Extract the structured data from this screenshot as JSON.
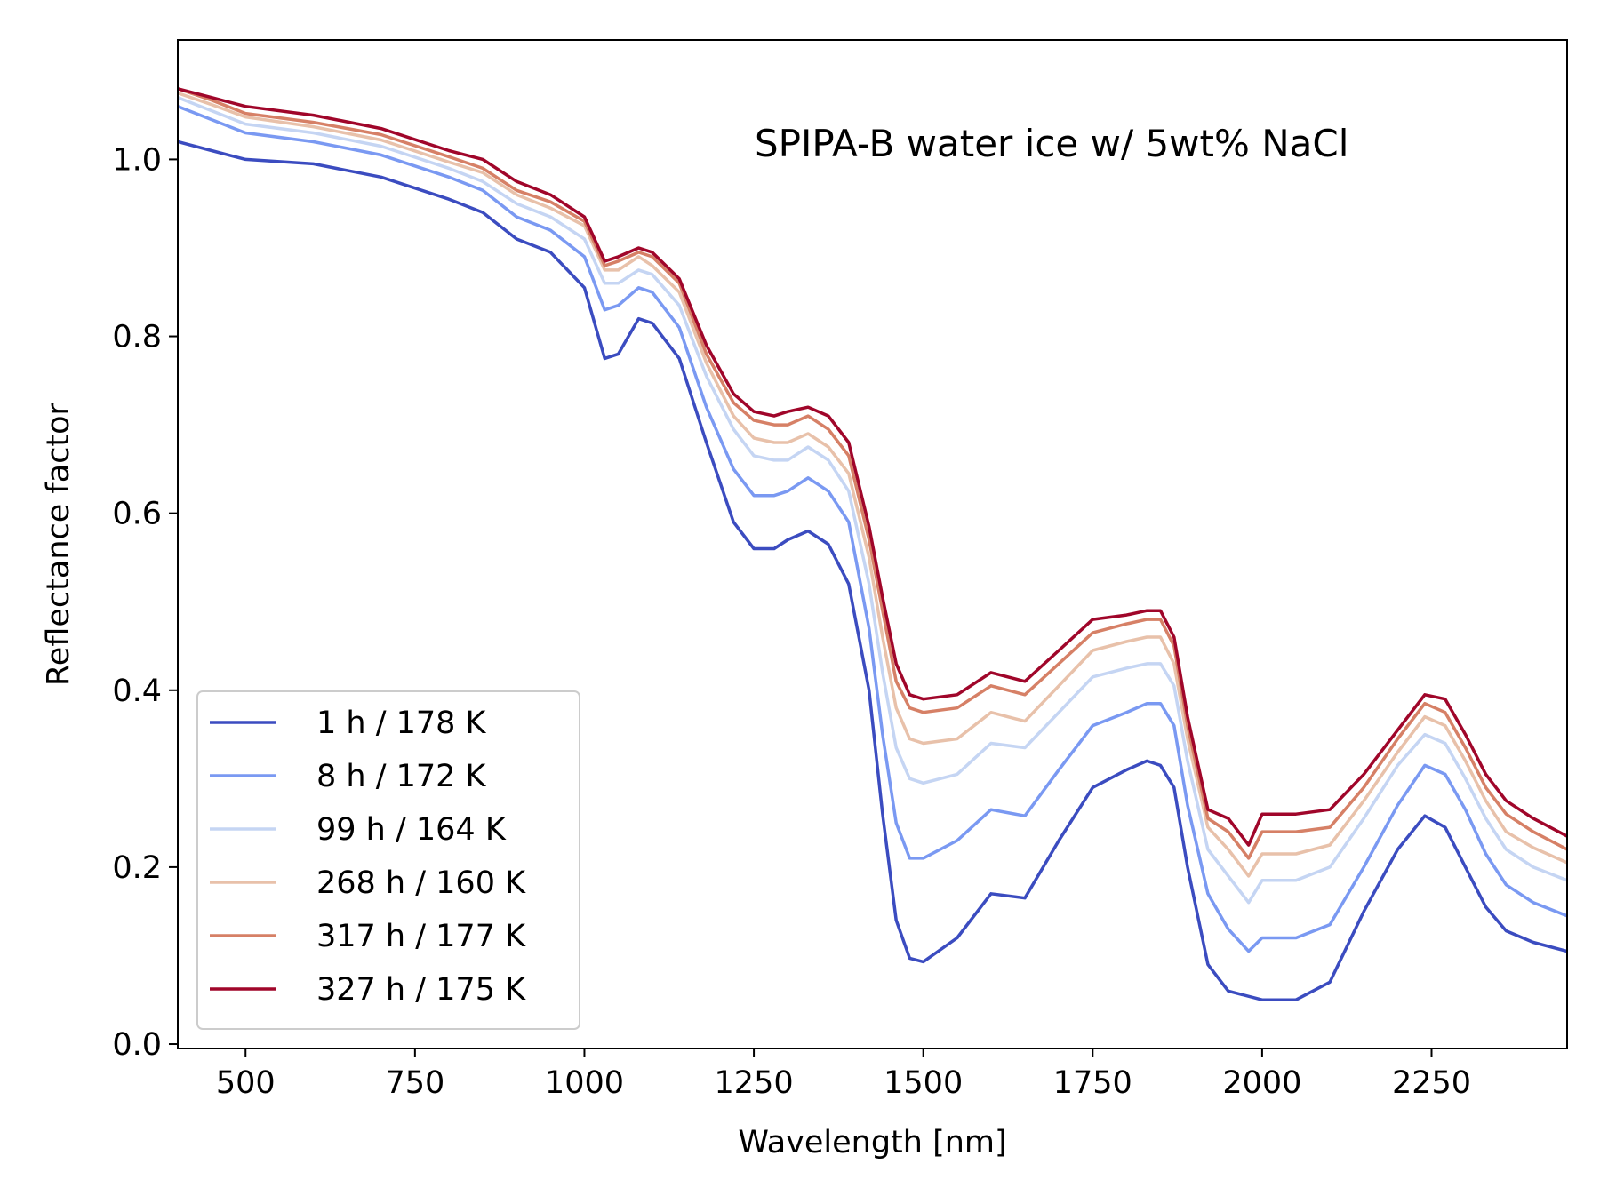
{
  "chart_data": {
    "type": "line",
    "title": "",
    "annotation": "SPIPA-B water ice w/ 5wt% NaCl",
    "xlabel": "Wavelength [nm]",
    "ylabel": "Reflectance factor",
    "xlim": [
      400,
      2450
    ],
    "ylim": [
      -0.005,
      1.135
    ],
    "xticks": [
      500,
      750,
      1000,
      1250,
      1500,
      1750,
      2000,
      2250
    ],
    "xtick_labels": [
      "500",
      "750",
      "1000",
      "1250",
      "1500",
      "1750",
      "2000",
      "2250"
    ],
    "yticks": [
      0.0,
      0.2,
      0.4,
      0.6,
      0.8,
      1.0
    ],
    "ytick_labels": [
      "0.0",
      "0.2",
      "0.4",
      "0.6",
      "0.8",
      "1.0"
    ],
    "grid": false,
    "legend_position": "lower-left",
    "series": [
      {
        "name": "1 h / 178 K",
        "color": "#3b4cc0",
        "x": [
          400,
          450,
          500,
          600,
          700,
          800,
          850,
          900,
          950,
          1000,
          1030,
          1050,
          1080,
          1100,
          1140,
          1180,
          1220,
          1250,
          1280,
          1300,
          1330,
          1360,
          1390,
          1420,
          1440,
          1460,
          1480,
          1500,
          1550,
          1600,
          1650,
          1700,
          1750,
          1800,
          1830,
          1850,
          1870,
          1890,
          1920,
          1950,
          2000,
          2050,
          2100,
          2150,
          2200,
          2240,
          2270,
          2300,
          2330,
          2360,
          2400,
          2450
        ],
        "y": [
          1.02,
          1.01,
          1.0,
          0.995,
          0.98,
          0.955,
          0.94,
          0.91,
          0.895,
          0.855,
          0.775,
          0.78,
          0.82,
          0.815,
          0.775,
          0.68,
          0.59,
          0.56,
          0.56,
          0.57,
          0.58,
          0.565,
          0.52,
          0.4,
          0.26,
          0.14,
          0.097,
          0.093,
          0.12,
          0.17,
          0.165,
          0.23,
          0.29,
          0.31,
          0.32,
          0.315,
          0.29,
          0.2,
          0.09,
          0.06,
          0.05,
          0.05,
          0.07,
          0.15,
          0.22,
          0.258,
          0.245,
          0.2,
          0.155,
          0.128,
          0.115,
          0.105
        ]
      },
      {
        "name": "8 h / 172 K",
        "color": "#7a99f2",
        "x": [
          400,
          450,
          500,
          600,
          700,
          800,
          850,
          900,
          950,
          1000,
          1030,
          1050,
          1080,
          1100,
          1140,
          1180,
          1220,
          1250,
          1280,
          1300,
          1330,
          1360,
          1390,
          1420,
          1440,
          1460,
          1480,
          1500,
          1550,
          1600,
          1650,
          1700,
          1750,
          1800,
          1830,
          1850,
          1870,
          1890,
          1920,
          1950,
          1980,
          2000,
          2050,
          2100,
          2150,
          2200,
          2240,
          2270,
          2300,
          2330,
          2360,
          2400,
          2450
        ],
        "y": [
          1.06,
          1.045,
          1.03,
          1.02,
          1.005,
          0.98,
          0.965,
          0.935,
          0.92,
          0.89,
          0.83,
          0.835,
          0.855,
          0.85,
          0.81,
          0.72,
          0.65,
          0.62,
          0.62,
          0.625,
          0.64,
          0.625,
          0.59,
          0.47,
          0.35,
          0.25,
          0.21,
          0.21,
          0.23,
          0.265,
          0.258,
          0.31,
          0.36,
          0.375,
          0.385,
          0.385,
          0.36,
          0.27,
          0.17,
          0.13,
          0.105,
          0.12,
          0.12,
          0.135,
          0.2,
          0.27,
          0.315,
          0.305,
          0.265,
          0.215,
          0.18,
          0.16,
          0.145
        ]
      },
      {
        "name": "99 h / 164 K",
        "color": "#c5d5f3",
        "x": [
          400,
          450,
          500,
          600,
          700,
          800,
          850,
          900,
          950,
          1000,
          1030,
          1050,
          1080,
          1100,
          1140,
          1180,
          1220,
          1250,
          1280,
          1300,
          1330,
          1360,
          1390,
          1420,
          1440,
          1460,
          1480,
          1500,
          1550,
          1600,
          1650,
          1700,
          1750,
          1800,
          1830,
          1850,
          1870,
          1890,
          1920,
          1950,
          1980,
          2000,
          2050,
          2100,
          2150,
          2200,
          2240,
          2270,
          2300,
          2330,
          2360,
          2400,
          2450
        ],
        "y": [
          1.07,
          1.055,
          1.04,
          1.03,
          1.015,
          0.99,
          0.975,
          0.95,
          0.935,
          0.91,
          0.86,
          0.86,
          0.875,
          0.87,
          0.835,
          0.755,
          0.695,
          0.665,
          0.66,
          0.66,
          0.675,
          0.66,
          0.625,
          0.52,
          0.42,
          0.335,
          0.3,
          0.295,
          0.305,
          0.34,
          0.335,
          0.375,
          0.415,
          0.425,
          0.43,
          0.43,
          0.405,
          0.32,
          0.22,
          0.19,
          0.16,
          0.185,
          0.185,
          0.2,
          0.255,
          0.315,
          0.35,
          0.34,
          0.3,
          0.255,
          0.22,
          0.2,
          0.185
        ]
      },
      {
        "name": "268 h / 160 K",
        "color": "#e8c1aa",
        "x": [
          400,
          450,
          500,
          600,
          700,
          800,
          850,
          900,
          950,
          1000,
          1030,
          1050,
          1080,
          1100,
          1140,
          1180,
          1220,
          1250,
          1280,
          1300,
          1330,
          1360,
          1390,
          1420,
          1440,
          1460,
          1480,
          1500,
          1550,
          1600,
          1650,
          1700,
          1750,
          1800,
          1830,
          1850,
          1870,
          1890,
          1920,
          1950,
          1980,
          2000,
          2050,
          2100,
          2150,
          2200,
          2240,
          2270,
          2300,
          2330,
          2360,
          2400,
          2450
        ],
        "y": [
          1.075,
          1.062,
          1.048,
          1.037,
          1.022,
          0.997,
          0.985,
          0.96,
          0.945,
          0.925,
          0.875,
          0.875,
          0.89,
          0.88,
          0.85,
          0.77,
          0.71,
          0.685,
          0.68,
          0.68,
          0.69,
          0.675,
          0.645,
          0.55,
          0.46,
          0.38,
          0.345,
          0.34,
          0.345,
          0.375,
          0.365,
          0.405,
          0.445,
          0.455,
          0.46,
          0.46,
          0.43,
          0.345,
          0.245,
          0.22,
          0.19,
          0.215,
          0.215,
          0.225,
          0.275,
          0.33,
          0.37,
          0.36,
          0.32,
          0.275,
          0.24,
          0.222,
          0.205
        ]
      },
      {
        "name": "317 h / 177 K",
        "color": "#d68066",
        "x": [
          400,
          450,
          500,
          600,
          700,
          800,
          850,
          900,
          950,
          1000,
          1030,
          1050,
          1080,
          1100,
          1140,
          1180,
          1220,
          1250,
          1280,
          1300,
          1330,
          1360,
          1390,
          1420,
          1440,
          1460,
          1480,
          1500,
          1550,
          1600,
          1650,
          1700,
          1750,
          1800,
          1830,
          1850,
          1870,
          1890,
          1920,
          1950,
          1980,
          2000,
          2050,
          2100,
          2150,
          2200,
          2240,
          2270,
          2300,
          2330,
          2360,
          2400,
          2450
        ],
        "y": [
          1.08,
          1.067,
          1.052,
          1.042,
          1.028,
          1.003,
          0.99,
          0.965,
          0.952,
          0.93,
          0.88,
          0.885,
          0.895,
          0.89,
          0.86,
          0.78,
          0.725,
          0.705,
          0.7,
          0.7,
          0.71,
          0.695,
          0.665,
          0.57,
          0.49,
          0.41,
          0.38,
          0.375,
          0.38,
          0.405,
          0.395,
          0.43,
          0.465,
          0.475,
          0.48,
          0.48,
          0.45,
          0.36,
          0.255,
          0.24,
          0.21,
          0.24,
          0.24,
          0.245,
          0.29,
          0.345,
          0.385,
          0.375,
          0.335,
          0.29,
          0.26,
          0.24,
          0.22
        ]
      },
      {
        "name": "327 h / 175 K",
        "color": "#a0062a",
        "x": [
          400,
          450,
          500,
          600,
          700,
          800,
          850,
          900,
          950,
          1000,
          1030,
          1050,
          1080,
          1100,
          1140,
          1180,
          1220,
          1250,
          1280,
          1300,
          1330,
          1360,
          1390,
          1420,
          1440,
          1460,
          1480,
          1500,
          1550,
          1600,
          1650,
          1700,
          1750,
          1800,
          1830,
          1850,
          1870,
          1890,
          1920,
          1950,
          1980,
          2000,
          2050,
          2100,
          2150,
          2200,
          2240,
          2270,
          2300,
          2330,
          2360,
          2400,
          2450
        ],
        "y": [
          1.08,
          1.07,
          1.06,
          1.05,
          1.035,
          1.01,
          1.0,
          0.975,
          0.96,
          0.935,
          0.885,
          0.89,
          0.9,
          0.895,
          0.865,
          0.79,
          0.735,
          0.715,
          0.71,
          0.715,
          0.72,
          0.71,
          0.68,
          0.585,
          0.505,
          0.43,
          0.395,
          0.39,
          0.395,
          0.42,
          0.41,
          0.445,
          0.48,
          0.485,
          0.49,
          0.49,
          0.46,
          0.37,
          0.265,
          0.255,
          0.225,
          0.26,
          0.26,
          0.265,
          0.305,
          0.355,
          0.395,
          0.39,
          0.35,
          0.305,
          0.275,
          0.255,
          0.235
        ]
      }
    ]
  }
}
